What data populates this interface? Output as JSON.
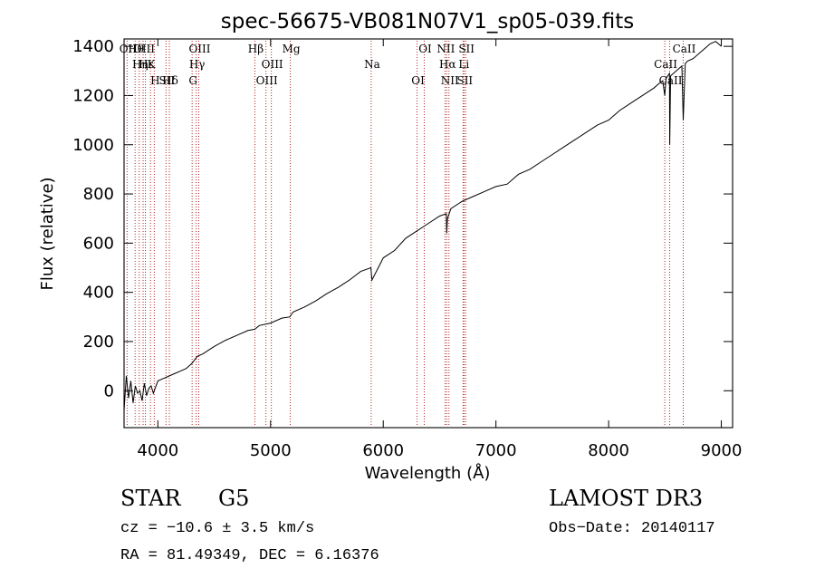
{
  "chart_data": {
    "type": "line",
    "title": "spec-56675-VB081N07V1_sp05-039.fits",
    "xlabel": "Wavelength (Å)",
    "ylabel": "Flux (relative)",
    "xlim": [
      3700,
      9100
    ],
    "ylim": [
      -150,
      1430
    ],
    "xticks": [
      4000,
      5000,
      6000,
      7000,
      8000,
      9000
    ],
    "yticks": [
      0,
      200,
      400,
      600,
      800,
      1000,
      1200,
      1400
    ],
    "grid": false,
    "colors": {
      "line": "#000000",
      "marker": "#b22222",
      "axes": "#000000",
      "background": "#ffffff"
    },
    "series": [
      {
        "name": "flux",
        "x": [
          3700,
          3720,
          3740,
          3760,
          3780,
          3800,
          3820,
          3840,
          3860,
          3880,
          3900,
          3920,
          3940,
          3960,
          3980,
          4000,
          4050,
          4100,
          4150,
          4200,
          4250,
          4300,
          4350,
          4400,
          4450,
          4500,
          4600,
          4700,
          4800,
          4860,
          4900,
          5000,
          5100,
          5170,
          5200,
          5300,
          5400,
          5500,
          5600,
          5700,
          5800,
          5890,
          5900,
          6000,
          6100,
          6200,
          6300,
          6400,
          6500,
          6560,
          6563,
          6570,
          6600,
          6700,
          6800,
          6900,
          7000,
          7100,
          7200,
          7300,
          7400,
          7500,
          7600,
          7700,
          7800,
          7900,
          8000,
          8100,
          8200,
          8300,
          8400,
          8450,
          8480,
          8498,
          8510,
          8540,
          8542,
          8550,
          8600,
          8650,
          8662,
          8680,
          8700,
          8750,
          8800,
          8850,
          8900,
          8950,
          9000
        ],
        "y": [
          -80,
          60,
          -30,
          40,
          -50,
          20,
          -10,
          0,
          -40,
          30,
          -20,
          10,
          20,
          -10,
          15,
          40,
          50,
          60,
          70,
          80,
          90,
          110,
          140,
          150,
          165,
          180,
          205,
          225,
          245,
          250,
          265,
          275,
          295,
          300,
          320,
          340,
          365,
          395,
          420,
          450,
          485,
          500,
          450,
          540,
          570,
          620,
          650,
          680,
          710,
          720,
          640,
          700,
          740,
          770,
          790,
          810,
          830,
          840,
          880,
          900,
          930,
          960,
          990,
          1020,
          1050,
          1080,
          1100,
          1140,
          1170,
          1200,
          1230,
          1250,
          1260,
          1200,
          1270,
          1290,
          1000,
          1280,
          1300,
          1320,
          1100,
          1330,
          1340,
          1350,
          1370,
          1390,
          1410,
          1420,
          1400
        ]
      }
    ],
    "line_markers": [
      {
        "label": "Hθ",
        "x": 3798
      },
      {
        "label": "K",
        "x": 3934
      },
      {
        "label": "Hδ",
        "x": 4102
      },
      {
        "label": "OII",
        "x": 3727
      },
      {
        "label": "Hε",
        "x": 3889
      },
      {
        "label": "SII",
        "x": 4072
      },
      {
        "label": "OIII",
        "x": 3869
      },
      {
        "label": "Hη",
        "x": 3835
      },
      {
        "label": "H",
        "x": 3968
      },
      {
        "label": "OIII",
        "x": 4363
      },
      {
        "label": "Hγ",
        "x": 4340
      },
      {
        "label": "G",
        "x": 4304
      },
      {
        "label": "Hβ",
        "x": 4861
      },
      {
        "label": "OIII",
        "x": 5007
      },
      {
        "label": "OIII",
        "x": 4959
      },
      {
        "label": "Mg",
        "x": 5175
      },
      {
        "label": "Na",
        "x": 5893
      },
      {
        "label": "OI",
        "x": 6300
      },
      {
        "label": "OI",
        "x": 6364
      },
      {
        "label": "Hα",
        "x": 6563
      },
      {
        "label": "SII",
        "x": 6716
      },
      {
        "label": "NII",
        "x": 6548
      },
      {
        "label": "Li",
        "x": 6708
      },
      {
        "label": "NII",
        "x": 6583
      },
      {
        "label": "SII",
        "x": 6731
      },
      {
        "label": "CaII",
        "x": 8498
      },
      {
        "label": "CaII",
        "x": 8542
      },
      {
        "label": "CaII",
        "x": 8662
      }
    ]
  },
  "info": {
    "class_label": "STAR",
    "subclass": "G5",
    "survey": "LAMOST DR3",
    "cz_text": "cz = −10.6 ± 3.5 km/s",
    "obs_date": "Obs−Date: 20140117",
    "radec": "RA =  81.49349, DEC =   6.16376"
  }
}
